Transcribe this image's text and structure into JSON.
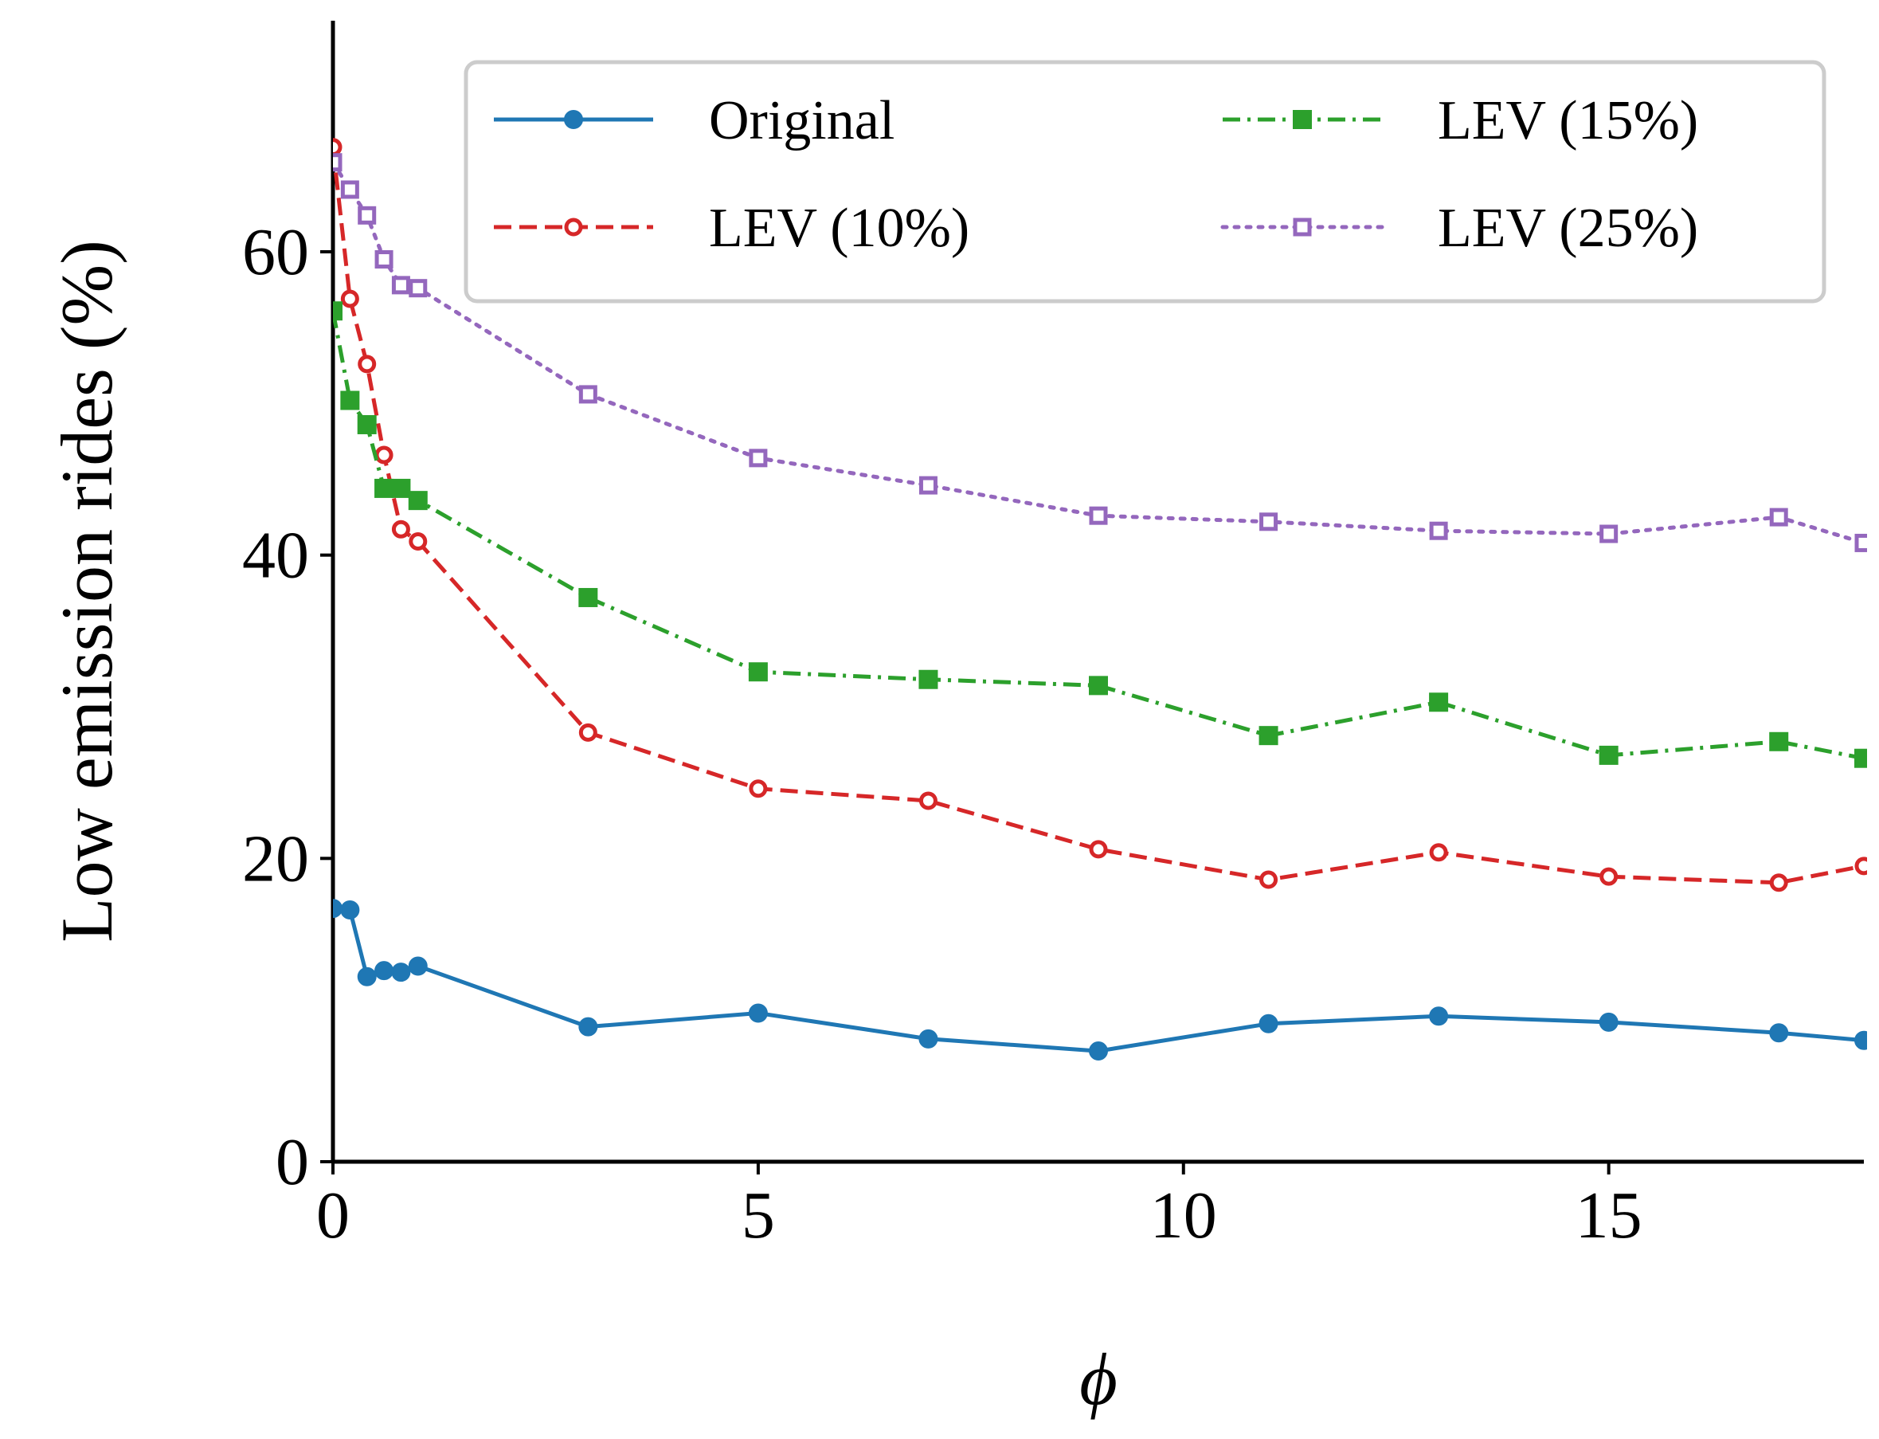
{
  "chart_data": {
    "type": "line",
    "title": "",
    "xlabel": "ϕ",
    "ylabel": "Low emission rides (%)",
    "xlim": [
      0,
      18
    ],
    "ylim": [
      0,
      75
    ],
    "xticks": [
      0,
      5,
      10,
      15
    ],
    "yticks": [
      0,
      20,
      40,
      60
    ],
    "xtick_labels": [
      "0",
      "5",
      "10",
      "15"
    ],
    "ytick_labels": [
      "0",
      "20",
      "40",
      "60"
    ],
    "grid": false,
    "legend_position": "top-right",
    "series": [
      {
        "name": "Original",
        "color": "#1f77b4",
        "style": "solid",
        "marker": "circle",
        "x": [
          0,
          0.2,
          0.4,
          0.6,
          0.8,
          1,
          3,
          5,
          7,
          9,
          11,
          13,
          15,
          17,
          18
        ],
        "y": [
          16.7,
          16.6,
          12.2,
          12.6,
          12.5,
          12.9,
          8.9,
          9.8,
          8.1,
          7.3,
          9.1,
          9.6,
          9.2,
          8.5,
          8.0
        ]
      },
      {
        "name": "LEV (10%)",
        "color": "#d62728",
        "style": "dashed",
        "marker": "circle-hollow",
        "x": [
          0,
          0.2,
          0.4,
          0.6,
          0.8,
          1,
          3,
          5,
          7,
          9,
          11,
          13,
          15,
          17,
          18
        ],
        "y": [
          66.9,
          56.9,
          52.6,
          46.6,
          41.7,
          40.9,
          28.3,
          24.6,
          23.8,
          20.6,
          18.6,
          20.4,
          18.8,
          18.4,
          19.5
        ]
      },
      {
        "name": "LEV (15%)",
        "color": "#2ca02c",
        "style": "dashdot",
        "marker": "square",
        "x": [
          0,
          0.2,
          0.4,
          0.6,
          0.8,
          1,
          3,
          5,
          7,
          9,
          11,
          13,
          15,
          17,
          18
        ],
        "y": [
          56.1,
          50.2,
          48.6,
          44.4,
          44.4,
          43.6,
          37.2,
          32.3,
          31.8,
          31.4,
          28.1,
          30.3,
          26.8,
          27.7,
          26.6
        ]
      },
      {
        "name": "LEV (25%)",
        "color": "#9467bd",
        "style": "dotted",
        "marker": "square-hollow",
        "x": [
          0,
          0.2,
          0.4,
          0.6,
          0.8,
          1,
          3,
          5,
          7,
          9,
          11,
          13,
          15,
          17,
          18
        ],
        "y": [
          65.9,
          64.1,
          62.4,
          59.5,
          57.8,
          57.6,
          50.6,
          46.4,
          44.6,
          42.6,
          42.2,
          41.6,
          41.4,
          42.5,
          40.8
        ]
      }
    ]
  }
}
